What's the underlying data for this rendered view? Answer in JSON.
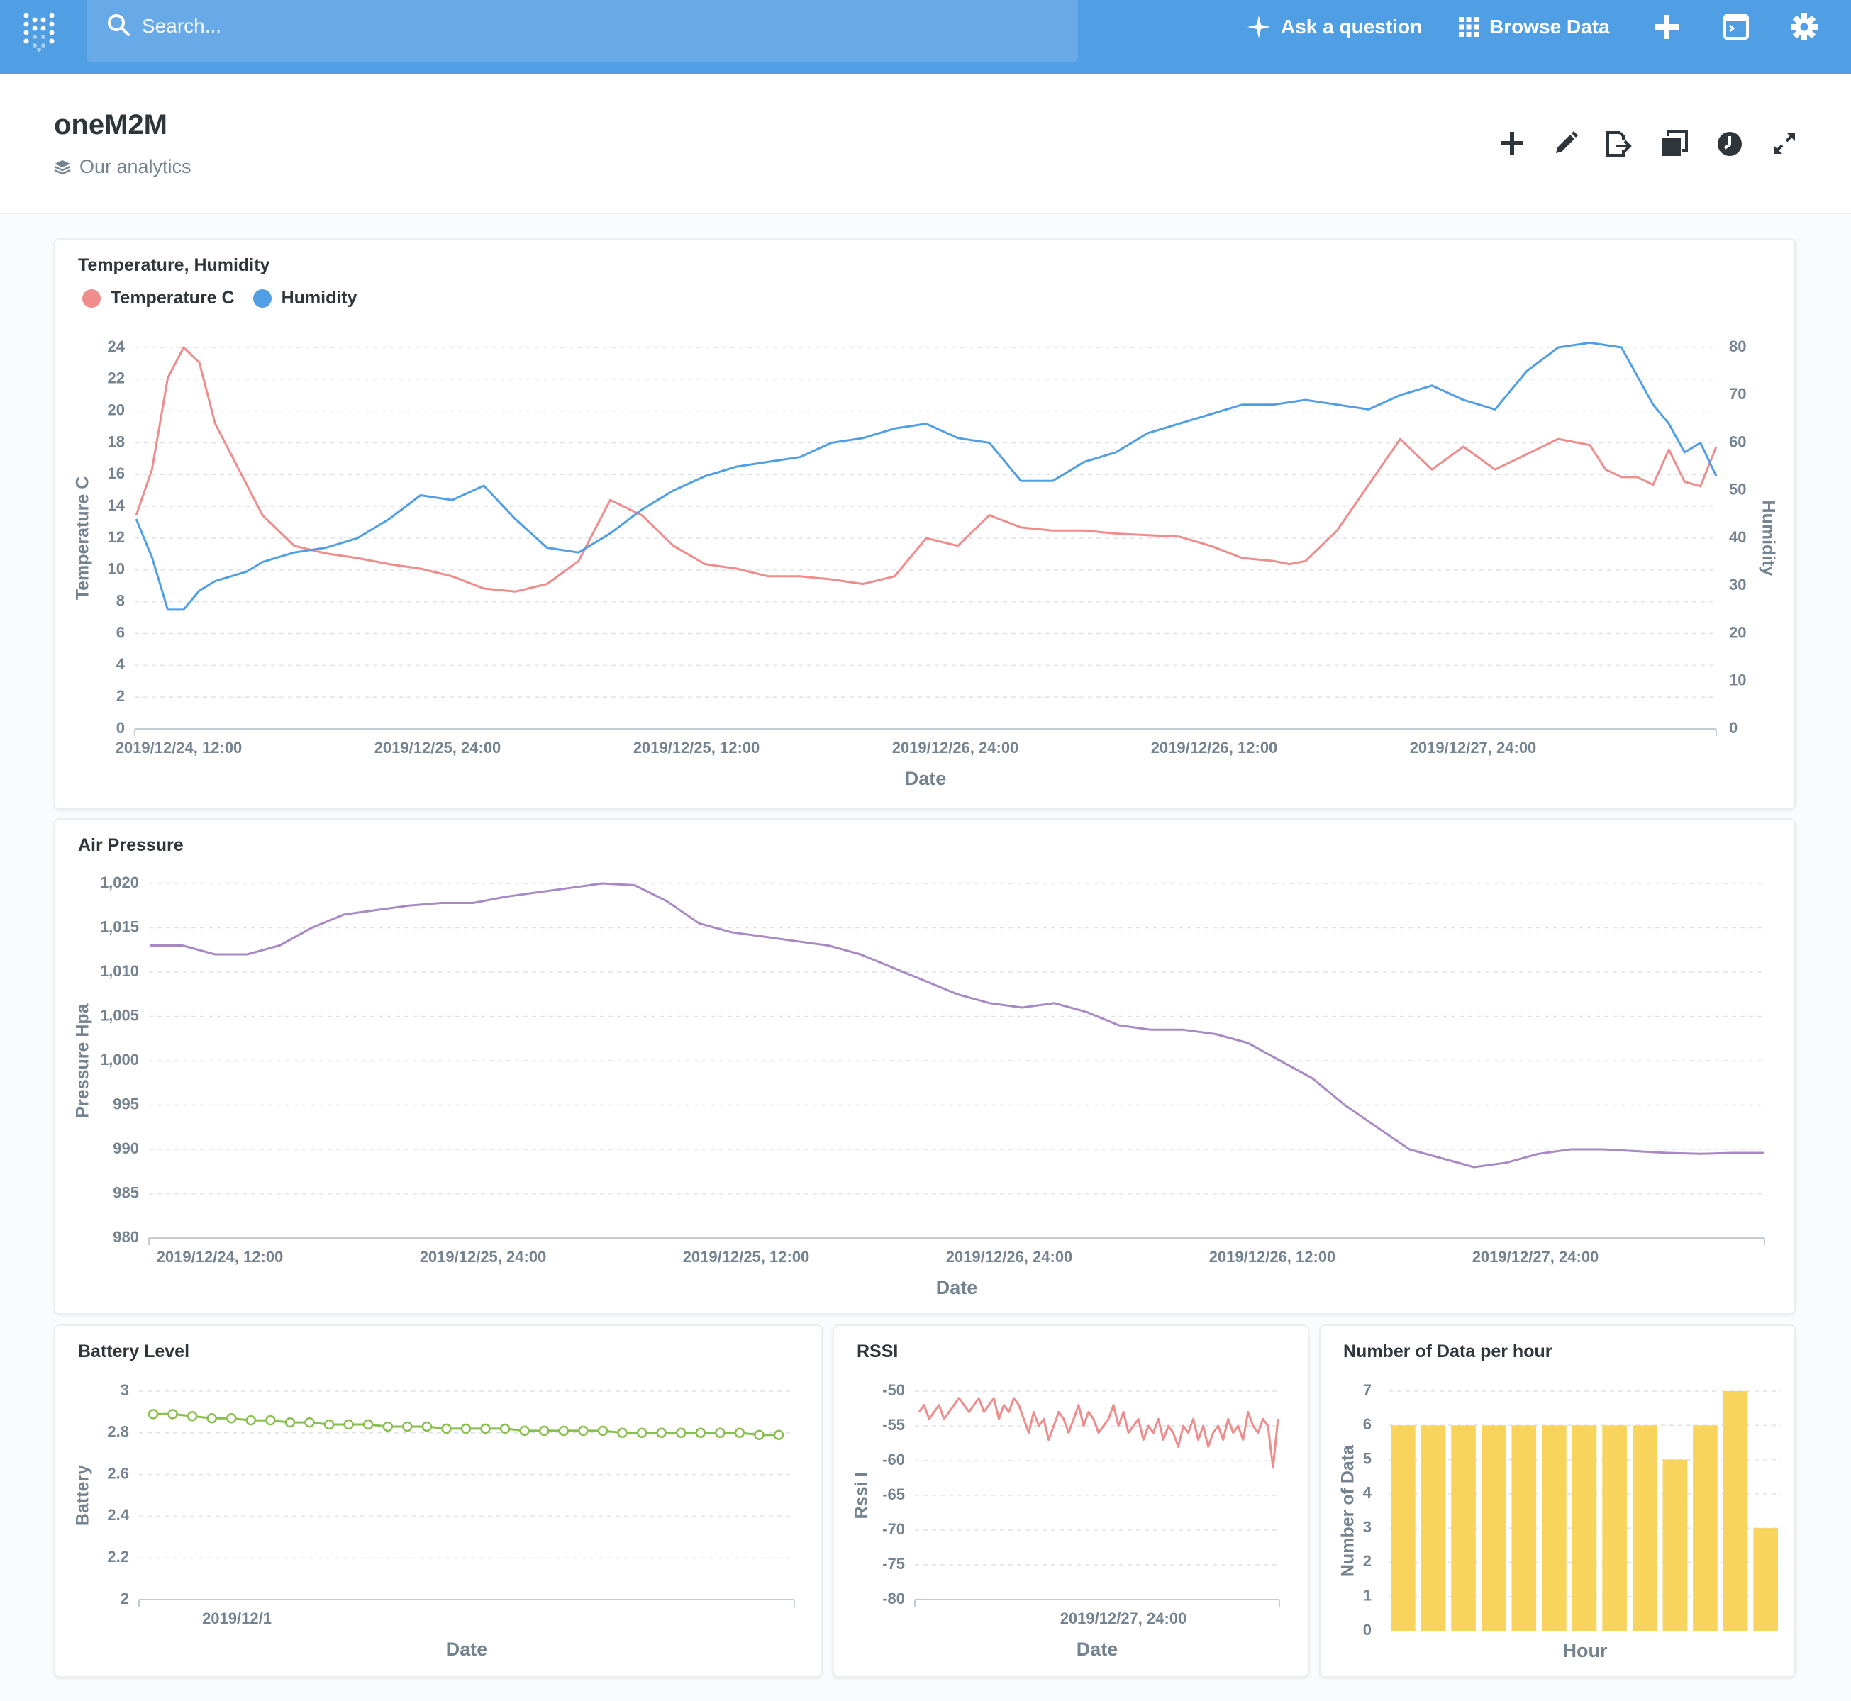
{
  "nav": {
    "search_placeholder": "Search...",
    "ask": "Ask a question",
    "browse": "Browse Data",
    "colors": {
      "bar": "#509ee3",
      "search": "#68aae8"
    }
  },
  "header": {
    "title": "oneM2M",
    "collection": "Our analytics"
  },
  "cards": {
    "temp": {
      "title": "Temperature, Humidity"
    },
    "pressure": {
      "title": "Air Pressure"
    },
    "battery": {
      "title": "Battery Level"
    },
    "rssi": {
      "title": "RSSI"
    },
    "count": {
      "title": "Number of Data per hour"
    }
  },
  "chart_data": [
    {
      "id": "temp",
      "type": "line",
      "title": "Temperature, Humidity",
      "xlabel": "Date",
      "ylabel": "Temperature C",
      "ylabel_right": "Humidity",
      "x_ticks": [
        "2019/12/24, 12:00",
        "2019/12/25, 24:00",
        "2019/12/25, 12:00",
        "2019/12/26, 24:00",
        "2019/12/26, 12:00",
        "2019/12/27, 24:00"
      ],
      "x_range": [
        0,
        100
      ],
      "ylim": [
        0,
        25
      ],
      "y_ticks": [
        0,
        2,
        4,
        6,
        8,
        10,
        12,
        14,
        16,
        18,
        20,
        22,
        24
      ],
      "ylim_right": [
        0,
        80
      ],
      "y_ticks_right": [
        0,
        10,
        20,
        30,
        40,
        50,
        60,
        70,
        80
      ],
      "series": [
        {
          "name": "Temperature C",
          "color": "#ef8c8c",
          "axis": "left",
          "x": [
            0,
            1,
            2,
            3,
            4,
            5,
            6,
            7,
            8,
            10,
            12,
            14,
            16,
            18,
            20,
            22,
            24,
            26,
            28,
            30,
            32,
            34,
            36,
            38,
            40,
            42,
            44,
            46,
            48,
            50,
            52,
            54,
            56,
            58,
            60,
            62,
            64,
            66,
            68,
            70,
            72,
            73,
            74,
            76,
            78,
            80,
            82,
            84,
            86,
            88,
            90,
            92,
            93,
            94,
            95,
            96,
            97,
            98,
            99,
            100
          ],
          "y": [
            14,
            17,
            23,
            25,
            24,
            20,
            18,
            16,
            14,
            12,
            11.5,
            11.2,
            10.8,
            10.5,
            10,
            9.2,
            9,
            9.5,
            11,
            15,
            14,
            12,
            10.8,
            10.5,
            10,
            10,
            9.8,
            9.5,
            10,
            12.5,
            12,
            14,
            13.2,
            13,
            13,
            12.8,
            12.7,
            12.6,
            12,
            11.2,
            11,
            10.8,
            11,
            13,
            16,
            19,
            17,
            18.5,
            17,
            18,
            19,
            18.6,
            17,
            16.5,
            16.5,
            16,
            18.3,
            16.2,
            15.9,
            18.5
          ]
        },
        {
          "name": "Humidity",
          "color": "#509ee3",
          "axis": "right",
          "x": [
            0,
            1,
            2,
            3,
            4,
            5,
            6,
            7,
            8,
            10,
            12,
            14,
            16,
            18,
            20,
            22,
            24,
            26,
            28,
            30,
            32,
            34,
            36,
            38,
            40,
            42,
            44,
            46,
            48,
            50,
            52,
            54,
            56,
            58,
            60,
            62,
            64,
            66,
            68,
            70,
            72,
            74,
            76,
            78,
            80,
            82,
            84,
            86,
            88,
            90,
            92,
            94,
            95,
            96,
            97,
            98,
            99,
            100
          ],
          "y": [
            44,
            36,
            25,
            25,
            29,
            31,
            32,
            33,
            35,
            37,
            38,
            40,
            44,
            49,
            48,
            51,
            44,
            38,
            37,
            41,
            46,
            50,
            53,
            55,
            56,
            57,
            60,
            61,
            63,
            64,
            61,
            60,
            52,
            52,
            56,
            58,
            62,
            64,
            66,
            68,
            68,
            69,
            68,
            67,
            70,
            72,
            69,
            67,
            75,
            80,
            81,
            80,
            74,
            68,
            64,
            58,
            60,
            53
          ]
        }
      ]
    },
    {
      "id": "pressure",
      "type": "line",
      "title": "Air Pressure",
      "xlabel": "Date",
      "ylabel": "Pressure Hpa",
      "x_ticks": [
        "2019/12/24, 12:00",
        "2019/12/25, 24:00",
        "2019/12/25, 12:00",
        "2019/12/26, 24:00",
        "2019/12/26, 12:00",
        "2019/12/27, 24:00"
      ],
      "x_range": [
        0,
        100
      ],
      "ylim": [
        980,
        1020
      ],
      "y_ticks": [
        "980",
        "985",
        "990",
        "995",
        "1,000",
        "1,005",
        "1,010",
        "1,015",
        "1,020"
      ],
      "series": [
        {
          "name": "Air Pressure",
          "color": "#a989c5",
          "x": [
            0,
            2,
            4,
            6,
            8,
            10,
            12,
            14,
            16,
            18,
            20,
            22,
            24,
            26,
            28,
            30,
            32,
            34,
            36,
            38,
            40,
            42,
            44,
            46,
            48,
            50,
            52,
            54,
            56,
            58,
            60,
            62,
            64,
            66,
            68,
            70,
            72,
            74,
            76,
            78,
            80,
            82,
            84,
            86,
            88,
            90,
            92,
            94,
            96,
            98,
            100
          ],
          "y": [
            1013,
            1013,
            1012,
            1012,
            1013,
            1015,
            1016.5,
            1017,
            1017.5,
            1017.8,
            1017.8,
            1018.5,
            1019,
            1019.5,
            1020,
            1019.8,
            1018,
            1015.5,
            1014.5,
            1014,
            1013.5,
            1013,
            1012,
            1010.5,
            1009,
            1007.5,
            1006.5,
            1006,
            1006.5,
            1005.5,
            1004,
            1003.5,
            1003.5,
            1003,
            1002,
            1000,
            998,
            995,
            992.5,
            990,
            989,
            988,
            988.5,
            989.5,
            990,
            990,
            989.8,
            989.6,
            989.5,
            989.6,
            989.6
          ]
        }
      ]
    },
    {
      "id": "battery",
      "type": "line",
      "title": "Battery Level",
      "xlabel": "Date",
      "ylabel": "Battery",
      "x_ticks": [
        "2019/12/1"
      ],
      "ylim": [
        2,
        3
      ],
      "y_ticks": [
        "2",
        "2.2",
        "2.4",
        "2.6",
        "2.8",
        "3"
      ],
      "series": [
        {
          "name": "Battery",
          "color": "#88bf4d",
          "values": [
            2.89,
            2.89,
            2.88,
            2.87,
            2.87,
            2.86,
            2.86,
            2.85,
            2.85,
            2.84,
            2.84,
            2.84,
            2.83,
            2.83,
            2.83,
            2.82,
            2.82,
            2.82,
            2.82,
            2.81,
            2.81,
            2.81,
            2.81,
            2.81,
            2.8,
            2.8,
            2.8,
            2.8,
            2.8,
            2.8,
            2.8,
            2.79,
            2.79
          ]
        }
      ]
    },
    {
      "id": "rssi",
      "type": "line",
      "title": "RSSI",
      "xlabel": "Date",
      "ylabel": "Rssi I",
      "x_ticks": [
        "2019/12/27, 24:00"
      ],
      "ylim": [
        -80,
        -50
      ],
      "y_ticks": [
        "-80",
        "-75",
        "-70",
        "-65",
        "-60",
        "-55",
        "-50"
      ],
      "series": [
        {
          "name": "RSSI",
          "color": "#ef8c8c",
          "values": [
            -53,
            -52,
            -54,
            -53,
            -52,
            -54,
            -53,
            -52,
            -51,
            -52,
            -53,
            -52,
            -51,
            -53,
            -52,
            -51,
            -54,
            -52,
            -53,
            -51,
            -52,
            -54,
            -56,
            -53,
            -55,
            -54,
            -57,
            -55,
            -53,
            -54,
            -56,
            -54,
            -52,
            -55,
            -53,
            -54,
            -56,
            -55,
            -54,
            -52,
            -55,
            -53,
            -56,
            -55,
            -54,
            -57,
            -55,
            -56,
            -54,
            -57,
            -55,
            -56,
            -58,
            -55,
            -56,
            -54,
            -57,
            -55,
            -58,
            -56,
            -55,
            -57,
            -54,
            -56,
            -55,
            -57,
            -53,
            -55,
            -56,
            -54,
            -55,
            -61,
            -54
          ]
        }
      ]
    },
    {
      "id": "count",
      "type": "bar",
      "title": "Number of Data per hour",
      "xlabel": "Hour",
      "ylabel": "Number of Data",
      "ylim": [
        0,
        7
      ],
      "y_ticks": [
        "0",
        "1",
        "2",
        "3",
        "4",
        "5",
        "6",
        "7"
      ],
      "color": "#f9d45c",
      "values": [
        6,
        6,
        6,
        6,
        6,
        6,
        6,
        6,
        6,
        5,
        6,
        7,
        3
      ]
    }
  ]
}
